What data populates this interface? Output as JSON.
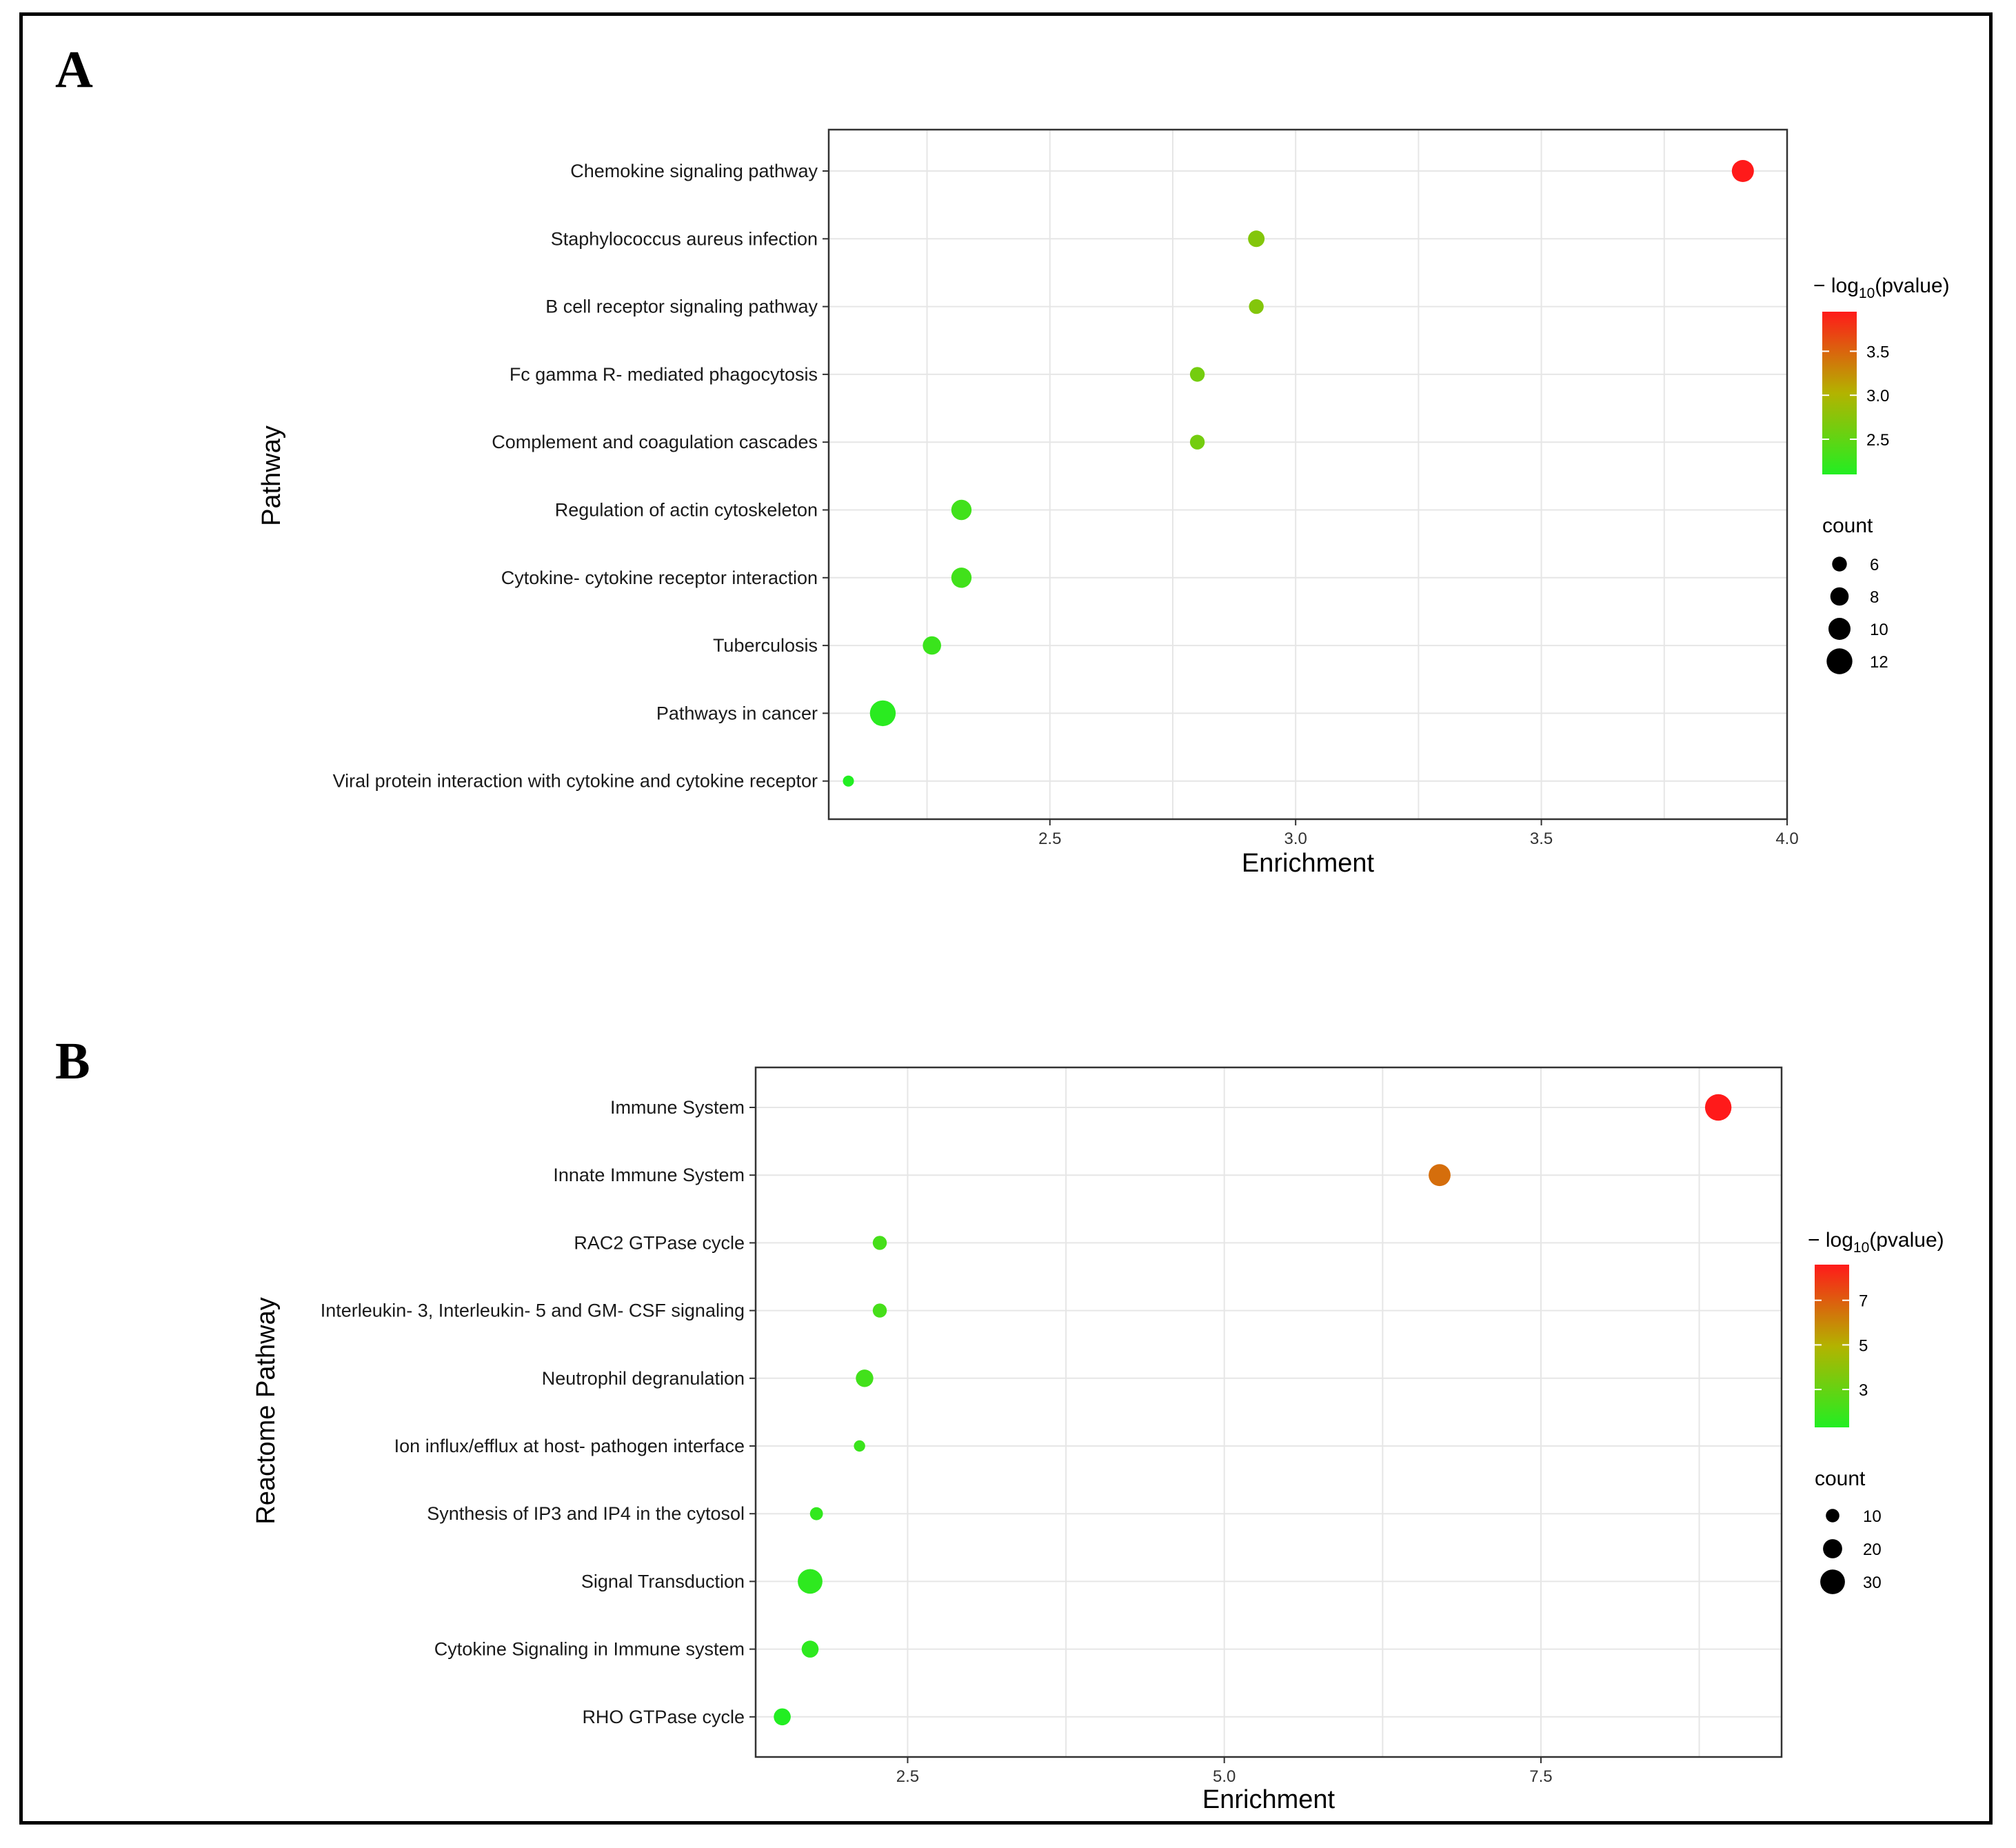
{
  "colors": {
    "low": "#22ee22",
    "mid": "#b3b300",
    "high": "#ff1a1a",
    "grid": "#e6e6e6",
    "panel_border": "#333333"
  },
  "chart_data": [
    {
      "type": "scatter",
      "panel_label": "A",
      "xlabel": "Enrichment",
      "ylabel": "Pathway",
      "xlim": [
        2.05,
        4.0
      ],
      "xticks": [
        2.5,
        3.0,
        3.5,
        4.0
      ],
      "xtick_labels": [
        "2.5",
        "3.0",
        "3.5",
        "4.0"
      ],
      "grid": true,
      "color_legend": {
        "title_prefix": "− log",
        "title_sub": "10",
        "title_suffix": "(pvalue)",
        "min": 2.1,
        "max": 3.95,
        "ticks": [
          2.5,
          3.0,
          3.5
        ],
        "tick_labels": [
          "2.5",
          "3.0",
          "3.5"
        ]
      },
      "size_legend": {
        "title": "count",
        "min": 4,
        "max": 13,
        "values": [
          6,
          8,
          10,
          12
        ],
        "labels": [
          "6",
          "8",
          "10",
          "12"
        ]
      },
      "points": [
        {
          "label": "Chemokine signaling pathway",
          "enrichment": 3.91,
          "count": 10,
          "neglog10p": 3.95
        },
        {
          "label": "Staphylococcus aureus infection",
          "enrichment": 2.92,
          "count": 7,
          "neglog10p": 2.72
        },
        {
          "label": "B cell receptor signaling pathway",
          "enrichment": 2.92,
          "count": 6,
          "neglog10p": 2.72
        },
        {
          "label": "Fc gamma R- mediated phagocytosis",
          "enrichment": 2.8,
          "count": 6,
          "neglog10p": 2.62
        },
        {
          "label": "Complement and coagulation cascades",
          "enrichment": 2.8,
          "count": 6,
          "neglog10p": 2.62
        },
        {
          "label": "Regulation of actin cytoskeleton",
          "enrichment": 2.32,
          "count": 9,
          "neglog10p": 2.3
        },
        {
          "label": "Cytokine- cytokine receptor interaction",
          "enrichment": 2.32,
          "count": 9,
          "neglog10p": 2.3
        },
        {
          "label": "Tuberculosis",
          "enrichment": 2.26,
          "count": 8,
          "neglog10p": 2.25
        },
        {
          "label": "Pathways in cancer",
          "enrichment": 2.16,
          "count": 12,
          "neglog10p": 2.15
        },
        {
          "label": "Viral protein interaction with cytokine and cytokine receptor",
          "enrichment": 2.09,
          "count": 4,
          "neglog10p": 2.1
        }
      ]
    },
    {
      "type": "scatter",
      "panel_label": "B",
      "xlabel": "Enrichment",
      "ylabel": "Reactome Pathway",
      "xlim": [
        1.3,
        9.4
      ],
      "xticks": [
        2.5,
        5.0,
        7.5
      ],
      "xtick_labels": [
        "2.5",
        "5.0",
        "7.5"
      ],
      "grid": true,
      "color_legend": {
        "title_prefix": "− log",
        "title_sub": "10",
        "title_suffix": "(pvalue)",
        "min": 1.3,
        "max": 8.6,
        "ticks": [
          3,
          5,
          7
        ],
        "tick_labels": [
          "3",
          "5",
          "7"
        ]
      },
      "size_legend": {
        "title": "count",
        "min": 3,
        "max": 40,
        "values": [
          10,
          20,
          30
        ],
        "labels": [
          "10",
          "20",
          "30"
        ]
      },
      "points": [
        {
          "label": "Immune System",
          "enrichment": 8.9,
          "count": 33,
          "neglog10p": 8.6
        },
        {
          "label": "Innate Immune System",
          "enrichment": 6.7,
          "count": 25,
          "neglog10p": 6.6
        },
        {
          "label": "RAC2 GTPase cycle",
          "enrichment": 2.28,
          "count": 11,
          "neglog10p": 2.2
        },
        {
          "label": "Interleukin- 3, Interleukin- 5 and GM- CSF signaling",
          "enrichment": 2.28,
          "count": 11,
          "neglog10p": 2.2
        },
        {
          "label": "Neutrophil degranulation",
          "enrichment": 2.16,
          "count": 17,
          "neglog10p": 2.1
        },
        {
          "label": "Ion influx/efflux at host- pathogen interface",
          "enrichment": 2.12,
          "count": 6,
          "neglog10p": 1.9
        },
        {
          "label": "Synthesis of IP3 and IP4 in the cytosol",
          "enrichment": 1.78,
          "count": 9,
          "neglog10p": 1.7
        },
        {
          "label": "Signal Transduction",
          "enrichment": 1.73,
          "count": 30,
          "neglog10p": 1.6
        },
        {
          "label": "Cytokine Signaling in Immune system",
          "enrichment": 1.73,
          "count": 16,
          "neglog10p": 1.6
        },
        {
          "label": "RHO GTPase cycle",
          "enrichment": 1.51,
          "count": 16,
          "neglog10p": 1.3
        }
      ]
    }
  ]
}
